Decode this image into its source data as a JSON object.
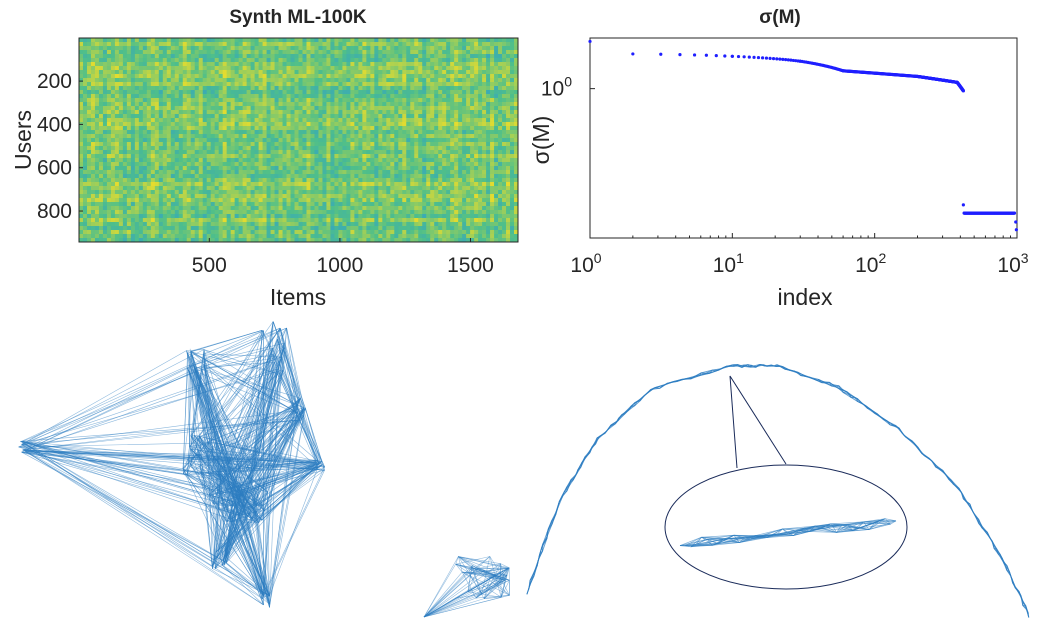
{
  "colors": {
    "axis": "#262626",
    "heat_low": "#2a9bd6",
    "heat_mid": "#4fbf8a",
    "heat_high": "#e5dc2e",
    "marker": "#1f1fff",
    "graph_edge": "#2e7ec1",
    "callout": "#1a2b5a"
  },
  "chart_data": [
    {
      "type": "heatmap",
      "title": "Synth ML-100K",
      "xlabel": "Items",
      "ylabel": "Users",
      "xlim": [
        1,
        1682
      ],
      "ylim": [
        1,
        943
      ],
      "y_reversed": true,
      "xticks": [
        500,
        1000,
        1500
      ],
      "yticks": [
        200,
        400,
        600,
        800
      ],
      "colormap": "parula"
    },
    {
      "type": "scatter",
      "title": "σ(M)",
      "xlabel": "index",
      "ylabel": "σ(M)",
      "xscale": "log",
      "yscale": "log",
      "xlim": [
        1,
        1000
      ],
      "ylim": [
        0.25,
        1.6
      ],
      "xticks": [
        {
          "base": "10",
          "exp": "0"
        },
        {
          "base": "10",
          "exp": "1"
        },
        {
          "base": "10",
          "exp": "2"
        },
        {
          "base": "10",
          "exp": "3"
        }
      ],
      "yticks": [
        {
          "base": "10",
          "exp": "0"
        }
      ],
      "grid": false,
      "series": [
        {
          "segments": [
            {
              "x_from": 1,
              "x_to": 1,
              "y_from": 1.55,
              "y_to": 1.55
            },
            {
              "x_from": 2,
              "x_to": 10,
              "y_from": 1.38,
              "y_to": 1.35
            },
            {
              "x_from": 10,
              "x_to": 30,
              "y_from": 1.35,
              "y_to": 1.29
            },
            {
              "x_from": 30,
              "x_to": 60,
              "y_from": 1.29,
              "y_to": 1.18
            },
            {
              "x_from": 60,
              "x_to": 200,
              "y_from": 1.18,
              "y_to": 1.12
            },
            {
              "x_from": 200,
              "x_to": 380,
              "y_from": 1.12,
              "y_to": 1.06
            },
            {
              "x_from": 380,
              "x_to": 420,
              "y_from": 1.06,
              "y_to": 0.98
            },
            {
              "x_from": 420,
              "x_to": 420,
              "y_from": 0.34,
              "y_to": 0.34
            },
            {
              "x_from": 425,
              "x_to": 960,
              "y_from": 0.315,
              "y_to": 0.315
            },
            {
              "x_from": 980,
              "x_to": 980,
              "y_from": 0.29,
              "y_to": 0.29
            },
            {
              "x_from": 990,
              "x_to": 990,
              "y_from": 0.27,
              "y_to": 0.27
            }
          ]
        }
      ]
    }
  ]
}
